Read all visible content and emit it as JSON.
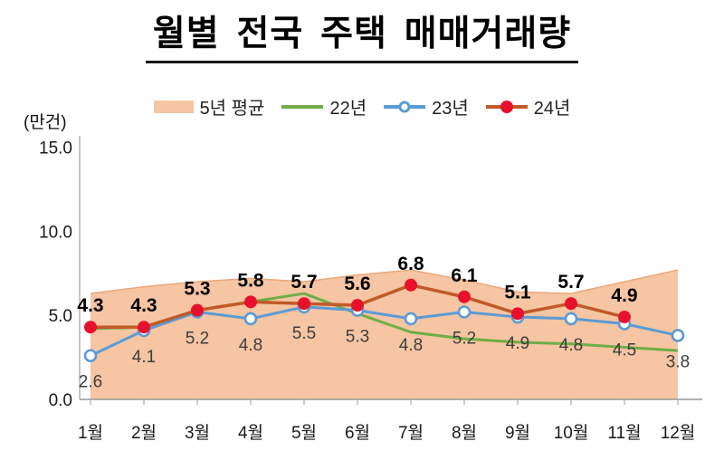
{
  "title": "월별 전국 주택 매매거래량",
  "y_axis": {
    "unit_label": "(만건)",
    "tick_labels": [
      "0.0",
      "5.0",
      "10.0",
      "15.0"
    ],
    "tick_values": [
      0,
      5,
      10,
      15
    ]
  },
  "x_axis": {
    "categories": [
      "1월",
      "2월",
      "3월",
      "4월",
      "5월",
      "6월",
      "7월",
      "8월",
      "9월",
      "10월",
      "11월",
      "12월"
    ]
  },
  "legend": [
    {
      "label": "5년 평균"
    },
    {
      "label": "22년"
    },
    {
      "label": "23년"
    },
    {
      "label": "24년"
    }
  ],
  "chart_data": {
    "type": "area+line",
    "title": "월별 전국 주택 매매거래량",
    "ylabel": "(만건)",
    "ylim": [
      0,
      15
    ],
    "grid": false,
    "legend_position": "top",
    "categories": [
      "1월",
      "2월",
      "3월",
      "4월",
      "5월",
      "6월",
      "7월",
      "8월",
      "9월",
      "10월",
      "11월",
      "12월"
    ],
    "series": [
      {
        "name": "5년 평균",
        "type": "area",
        "color": "#F6C5A3",
        "edge_color": "#EBA77B",
        "values": [
          6.3,
          6.7,
          7.0,
          7.2,
          7.0,
          7.4,
          7.7,
          7.1,
          6.4,
          6.3,
          7.0,
          7.7
        ],
        "estimated_from_plot": true,
        "data_labels": "none"
      },
      {
        "name": "22년",
        "type": "line",
        "color": "#70AD47",
        "values": [
          4.2,
          4.3,
          5.3,
          5.8,
          6.3,
          5.1,
          4.0,
          3.6,
          3.4,
          3.3,
          3.1,
          2.9
        ],
        "estimated_from_plot": true,
        "data_labels": "none"
      },
      {
        "name": "23년",
        "type": "line",
        "color": "#5B9BD5",
        "marker": "circle-open",
        "marker_fill": "#ffffff",
        "values": [
          2.6,
          4.1,
          5.2,
          4.8,
          5.5,
          5.3,
          4.8,
          5.2,
          4.9,
          4.8,
          4.5,
          3.8
        ],
        "data_labels": "below",
        "label_color": "#3d3d3d"
      },
      {
        "name": "24년",
        "type": "line",
        "color": "#C05A28",
        "marker": "circle-filled",
        "marker_fill": "#E8112D",
        "values": [
          4.3,
          4.3,
          5.3,
          5.8,
          5.7,
          5.6,
          6.8,
          6.1,
          5.1,
          5.7,
          4.9
        ],
        "data_labels": "above-bold",
        "label_color": "#000000"
      }
    ]
  }
}
